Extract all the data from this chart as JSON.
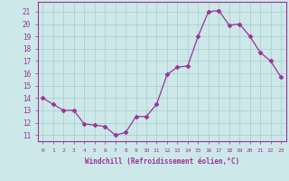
{
  "x": [
    0,
    1,
    2,
    3,
    4,
    5,
    6,
    7,
    8,
    9,
    10,
    11,
    12,
    13,
    14,
    15,
    16,
    17,
    18,
    19,
    20,
    21,
    22,
    23
  ],
  "y": [
    14.0,
    13.5,
    13.0,
    13.0,
    11.9,
    11.8,
    11.7,
    11.0,
    11.2,
    12.5,
    12.5,
    13.5,
    15.9,
    16.5,
    16.6,
    19.0,
    21.0,
    21.1,
    19.9,
    20.0,
    19.0,
    17.7,
    17.0,
    15.7
  ],
  "line_color": "#993399",
  "marker": "D",
  "marker_size": 2.5,
  "bg_color": "#cce8e8",
  "grid_color": "#aacccc",
  "xlabel": "Windchill (Refroidissement éolien,°C)",
  "ylabel_ticks": [
    11,
    12,
    13,
    14,
    15,
    16,
    17,
    18,
    19,
    20,
    21
  ],
  "xlim": [
    -0.5,
    23.5
  ],
  "ylim": [
    10.5,
    21.8
  ],
  "font_color": "#993399"
}
